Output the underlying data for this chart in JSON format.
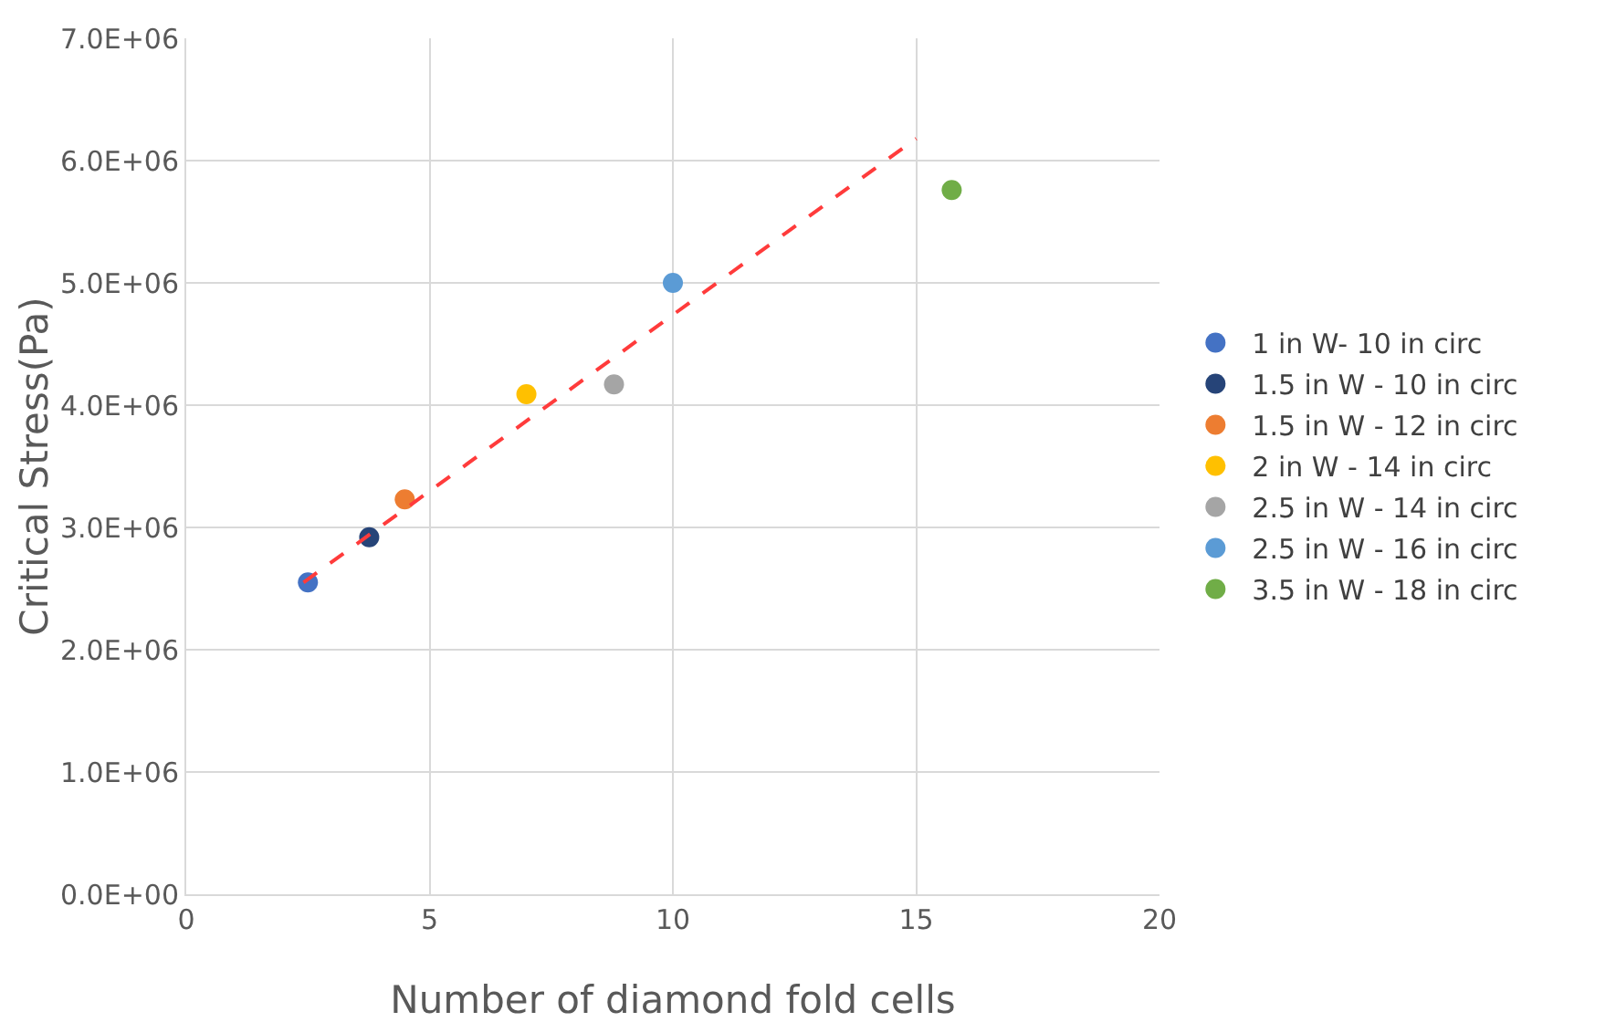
{
  "chart_data": {
    "type": "scatter",
    "xlabel": "Number of diamond fold cells",
    "ylabel": "Critical Stress(Pa)",
    "xlim": [
      0,
      20
    ],
    "xticks": [
      0,
      5,
      10,
      15,
      20
    ],
    "ylim": [
      0,
      7000000
    ],
    "yticks": [
      {
        "value": 0,
        "label": "0.0E+00"
      },
      {
        "value": 1000000,
        "label": "1.0E+06"
      },
      {
        "value": 2000000,
        "label": "2.0E+06"
      },
      {
        "value": 3000000,
        "label": "3.0E+06"
      },
      {
        "value": 4000000,
        "label": "4.0E+06"
      },
      {
        "value": 5000000,
        "label": "5.0E+06"
      },
      {
        "value": 6000000,
        "label": "6.0E+06"
      },
      {
        "value": 7000000,
        "label": "7.0E+06"
      }
    ],
    "grid": true,
    "legend": "right",
    "marker": "circle",
    "series": [
      {
        "name": "1 in W- 10 in circ",
        "color": "#4472c4",
        "x": [
          2.5
        ],
        "values": [
          2550000
        ]
      },
      {
        "name": "1.5 in W - 10 in circ",
        "color": "#264478",
        "x": [
          3.76
        ],
        "values": [
          2920000
        ]
      },
      {
        "name": "1.5 in W - 12 in circ",
        "color": "#ed7d31",
        "x": [
          4.49
        ],
        "values": [
          3230000
        ]
      },
      {
        "name": "2 in W - 14 in circ",
        "color": "#ffc000",
        "x": [
          6.99
        ],
        "values": [
          4090000
        ]
      },
      {
        "name": "2.5 in W - 14 in circ",
        "color": "#a5a5a5",
        "x": [
          8.79
        ],
        "values": [
          4170000
        ]
      },
      {
        "name": "2.5 in W - 16 in circ",
        "color": "#5b9bd5",
        "x": [
          10.0
        ],
        "values": [
          5000000
        ]
      },
      {
        "name": "3.5 in W - 18 in circ",
        "color": "#70ad47",
        "x": [
          15.73
        ],
        "values": [
          5760000
        ]
      },
      {
        "type": "line",
        "color": "#ff3b3b",
        "line_style": "dashed",
        "marker": "none",
        "x": [
          2.41,
          15.0
        ],
        "values": [
          2550000,
          6180000
        ]
      }
    ]
  }
}
